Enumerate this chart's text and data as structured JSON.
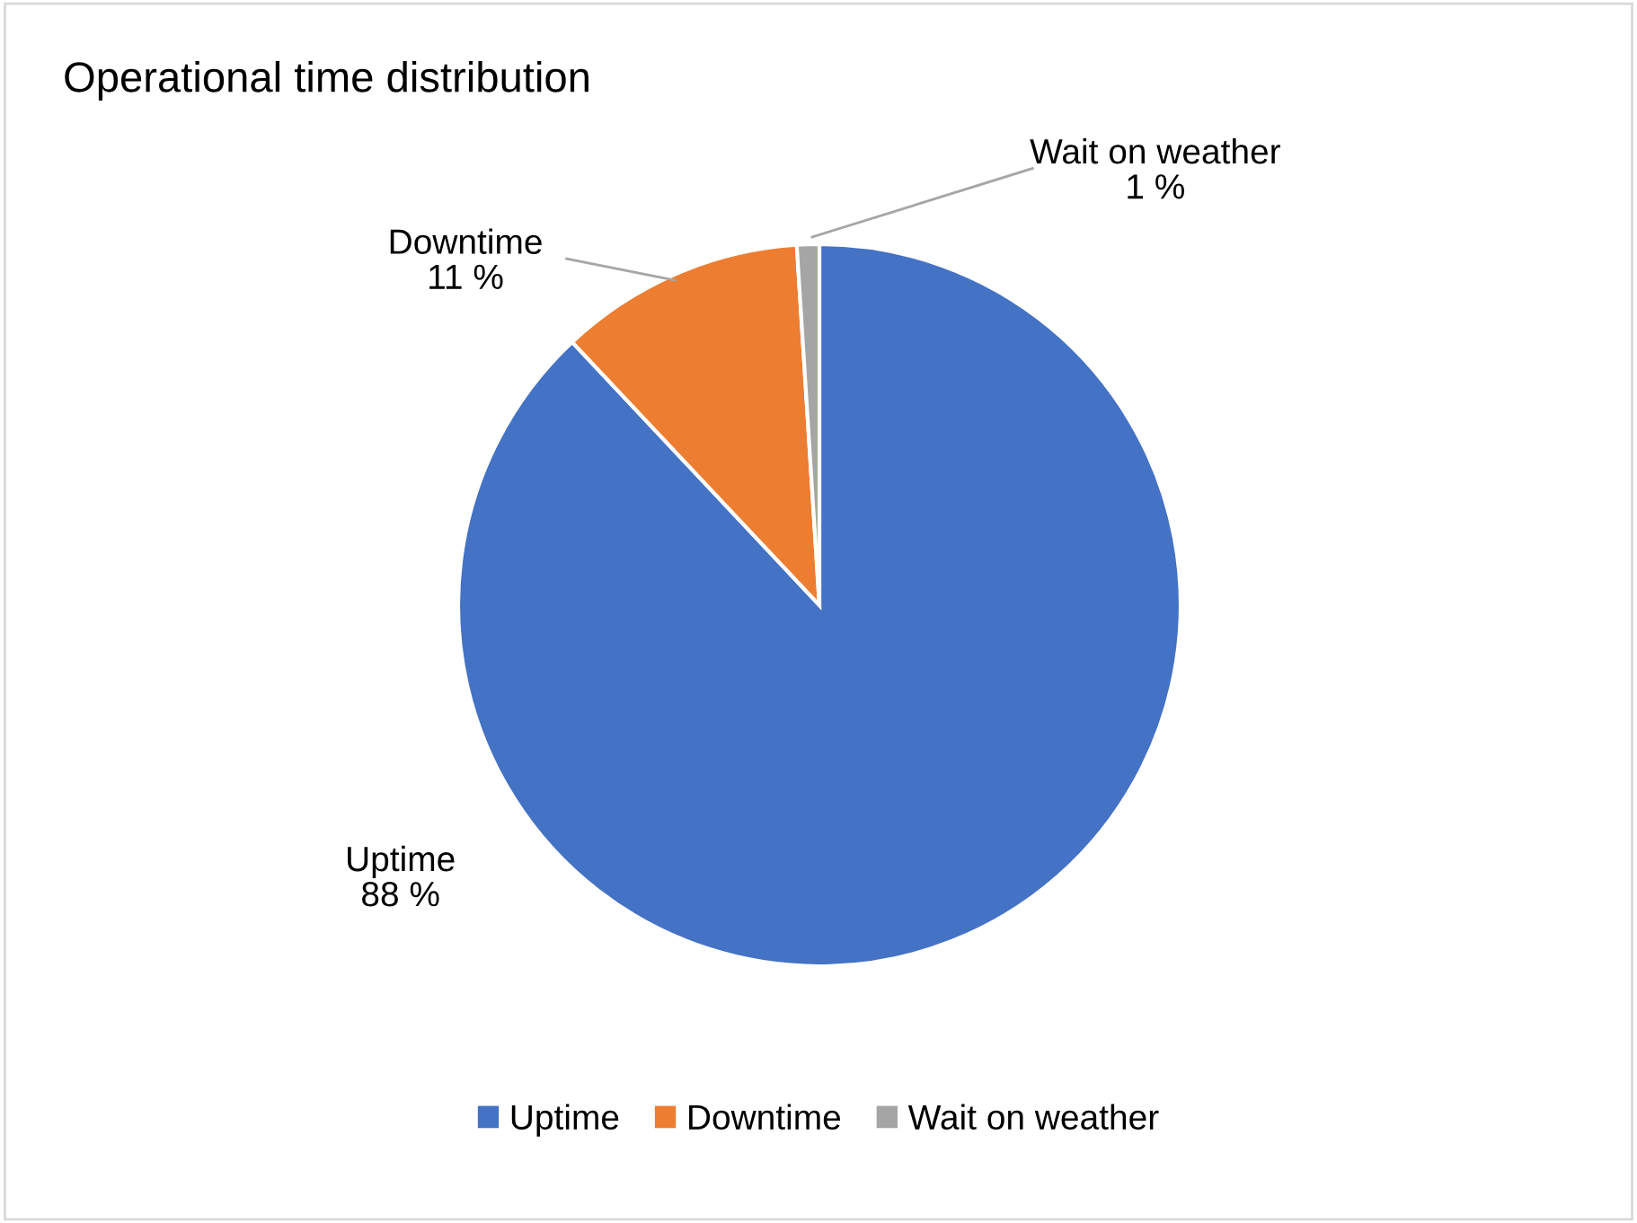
{
  "chart_data": {
    "type": "pie",
    "title": "Operational time distribution",
    "categories": [
      "Uptime",
      "Downtime",
      "Wait on weather"
    ],
    "values": [
      88,
      11,
      1
    ],
    "colors": [
      "#4472c4",
      "#ed7d31",
      "#a5a5a5"
    ],
    "value_labels": [
      "88 %",
      "11 %",
      "1 %"
    ],
    "legend": "bottom"
  }
}
